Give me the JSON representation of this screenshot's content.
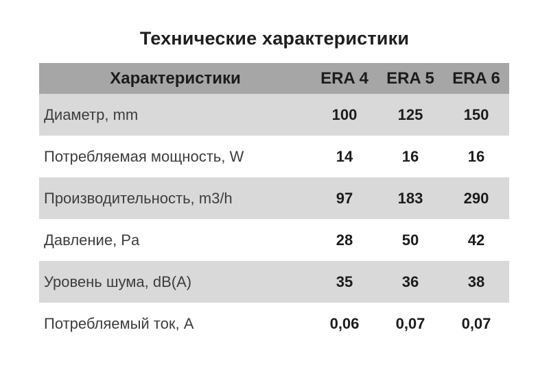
{
  "title": "Технические характеристики",
  "colors": {
    "header_bg": "#a6a6a6",
    "row_alt_bg": "#d9d9d9",
    "row_bg": "#ffffff",
    "heading_text": "#1e1e1e",
    "label_text": "#3d3d3d",
    "value_text": "#1c1c1c"
  },
  "table": {
    "header": [
      "Характеристики",
      "ERA 4",
      "ERA 5",
      "ERA 6"
    ],
    "rows": [
      {
        "label": "Диаметр, mm",
        "values": [
          "100",
          "125",
          "150"
        ]
      },
      {
        "label": "Потребляемая мощность, W",
        "values": [
          "14",
          "16",
          "16"
        ]
      },
      {
        "label": "Производительность, m3/h",
        "values": [
          "97",
          "183",
          "290"
        ]
      },
      {
        "label": "Давление, Pa",
        "values": [
          "28",
          "50",
          "42"
        ]
      },
      {
        "label": "Уровень шума, dB(A)",
        "values": [
          "35",
          "36",
          "38"
        ]
      },
      {
        "label": "Потребляемый ток, A",
        "values": [
          "0,06",
          "0,07",
          "0,07"
        ]
      }
    ]
  },
  "chart_data": {
    "type": "table",
    "title": "Технические характеристики",
    "columns": [
      "Характеристики",
      "ERA 4",
      "ERA 5",
      "ERA 6"
    ],
    "rows": [
      [
        "Диаметр, mm",
        100,
        125,
        150
      ],
      [
        "Потребляемая мощность, W",
        14,
        16,
        16
      ],
      [
        "Производительность, m3/h",
        97,
        183,
        290
      ],
      [
        "Давление, Pa",
        28,
        50,
        42
      ],
      [
        "Уровень шума, dB(A)",
        35,
        36,
        38
      ],
      [
        "Потребляемый ток, A",
        0.06,
        0.07,
        0.07
      ]
    ],
    "notes": "Alternating row shading: header dark gray, odd data rows light gray, even data rows white; decimal values displayed with comma separator"
  }
}
